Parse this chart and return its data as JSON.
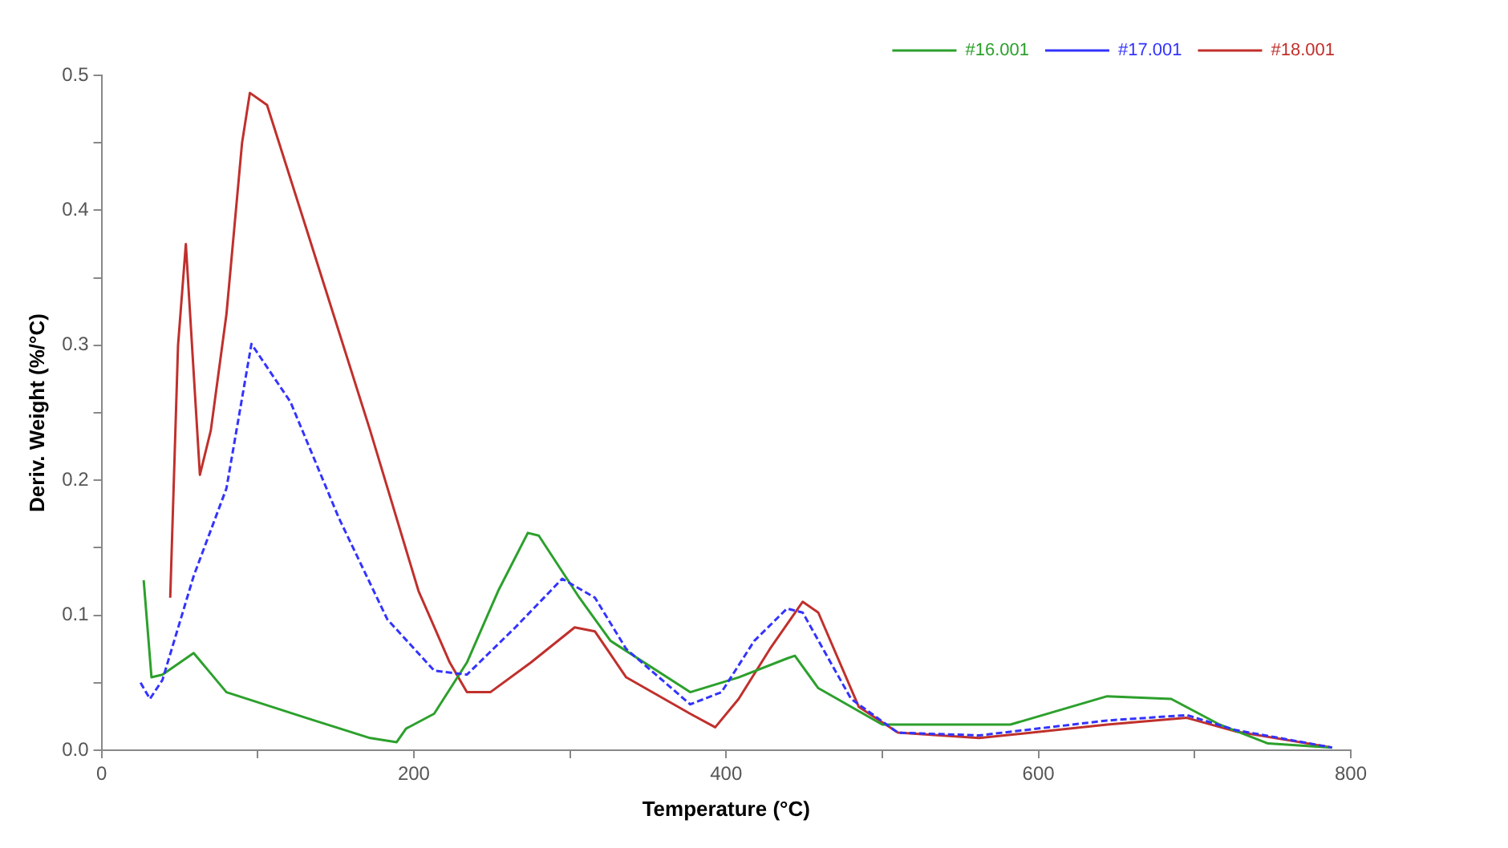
{
  "chart_data": {
    "type": "line",
    "xlabel": "Temperature (°C)",
    "ylabel": "Deriv. Weight (%/°C)",
    "xlim": [
      0,
      800
    ],
    "ylim": [
      0,
      0.5
    ],
    "xticks": [
      0,
      {
        "value": 100,
        "label": null
      },
      200,
      {
        "value": 300,
        "label": null
      },
      400,
      {
        "value": 500,
        "label": null
      },
      600,
      {
        "value": 700,
        "label": null
      },
      800
    ],
    "yticks": [
      {
        "value": 0,
        "label": "0.0"
      },
      {
        "value": 0.05,
        "label": null
      },
      0.1,
      {
        "value": 0.15,
        "label": null
      },
      0.2,
      {
        "value": 0.25,
        "label": null
      },
      0.3,
      {
        "value": 0.35,
        "label": null
      },
      0.4,
      {
        "value": 0.45,
        "label": null
      },
      0.5
    ],
    "grid": false,
    "legend": "top right",
    "marker": "none",
    "series": [
      {
        "name": "#16.001",
        "color": "#2ca02c",
        "line_style": "solid",
        "x": [
          27,
          32,
          39,
          59,
          80,
          131,
          172,
          189,
          195,
          213,
          234,
          254,
          273,
          280,
          306,
          326,
          377,
          408,
          439,
          444,
          459,
          500,
          582,
          644,
          685,
          716,
          747,
          788
        ],
        "values": [
          0.126,
          0.054,
          0.056,
          0.072,
          0.043,
          0.024,
          0.009,
          0.006,
          0.016,
          0.027,
          0.065,
          0.118,
          0.161,
          0.159,
          0.113,
          0.081,
          0.043,
          0.054,
          0.068,
          0.07,
          0.046,
          0.019,
          0.019,
          0.04,
          0.038,
          0.019,
          0.005,
          0.002
        ]
      },
      {
        "name": "#17.001",
        "color": "#3333ff",
        "line_style": "dashed",
        "x": [
          25,
          31,
          39,
          59,
          80,
          96,
          121,
          152,
          183,
          213,
          234,
          265,
          295,
          316,
          336,
          377,
          397,
          418,
          439,
          449,
          480,
          510,
          562,
          644,
          695,
          726,
          788
        ],
        "values": [
          0.05,
          0.038,
          0.052,
          0.129,
          0.194,
          0.301,
          0.258,
          0.172,
          0.097,
          0.059,
          0.056,
          0.091,
          0.127,
          0.113,
          0.075,
          0.034,
          0.043,
          0.081,
          0.105,
          0.102,
          0.038,
          0.013,
          0.011,
          0.022,
          0.026,
          0.015,
          0.002
        ]
      },
      {
        "name": "#18.001",
        "color": "#c0302c",
        "line_style": "solid",
        "x": [
          44,
          49,
          54,
          63,
          70,
          80,
          90,
          95,
          106,
          131,
          172,
          203,
          223,
          234,
          249,
          275,
          303,
          316,
          336,
          377,
          393,
          408,
          428,
          449,
          459,
          485,
          510,
          562,
          644,
          695,
          726,
          788
        ],
        "values": [
          0.113,
          0.3,
          0.375,
          0.204,
          0.237,
          0.323,
          0.45,
          0.487,
          0.478,
          0.387,
          0.237,
          0.118,
          0.065,
          0.043,
          0.043,
          0.065,
          0.091,
          0.088,
          0.054,
          0.027,
          0.017,
          0.038,
          0.075,
          0.11,
          0.102,
          0.032,
          0.013,
          0.009,
          0.019,
          0.024,
          0.014,
          0.002
        ]
      }
    ]
  }
}
